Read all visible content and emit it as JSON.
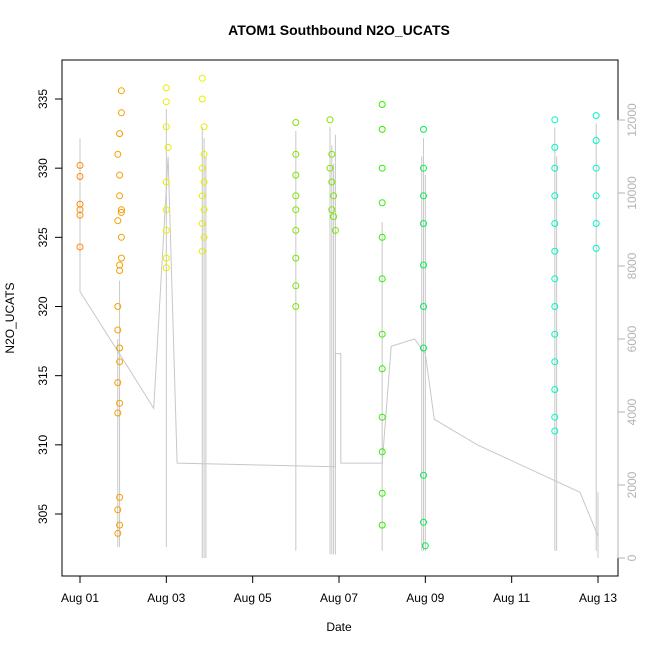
{
  "colors": {
    "background": "#ffffff",
    "axis": "#000000",
    "right_axis": "#b3b3b3",
    "altitude_line": "#c8c8c8",
    "point_palette": [
      "#ff8c00",
      "#f5a000",
      "#e8ee00",
      "#bff500",
      "#7de600",
      "#33ee00",
      "#00ee55",
      "#00f0a0",
      "#00f5c5"
    ]
  },
  "chart_data": {
    "type": "scatter",
    "title": "ATOM1 Southbound N2O_UCATS",
    "xlabel": "Date",
    "ylabel": "N2O_UCATS",
    "y2label": "",
    "xlim": [
      "2016-07-31",
      "2016-08-13"
    ],
    "ylim": [
      301.5,
      337.5
    ],
    "y2lim": [
      -200,
      12800
    ],
    "x_ticks": [
      {
        "label": "Aug 01",
        "date": "2016-08-01"
      },
      {
        "label": "Aug 03",
        "date": "2016-08-03"
      },
      {
        "label": "Aug 05",
        "date": "2016-08-05"
      },
      {
        "label": "Aug 07",
        "date": "2016-08-07"
      },
      {
        "label": "Aug 09",
        "date": "2016-08-09"
      },
      {
        "label": "Aug 11",
        "date": "2016-08-11"
      },
      {
        "label": "Aug 13",
        "date": "2016-08-13"
      }
    ],
    "y_ticks": [
      "305",
      "310",
      "315",
      "320",
      "325",
      "330",
      "335"
    ],
    "y2_ticks": [
      "0",
      "2000",
      "4000",
      "6000",
      "8000",
      "10000",
      "12000"
    ],
    "grid": false,
    "legend": "none",
    "series": [
      {
        "kind": "points",
        "axis": "left",
        "points": [
          [
            "2016-08-01 00:00",
            330.2
          ],
          [
            "2016-08-01 00:00",
            329.4
          ],
          [
            "2016-08-01 00:00",
            327.4
          ],
          [
            "2016-08-01 00:00",
            327.0
          ],
          [
            "2016-08-01 00:00",
            326.6
          ],
          [
            "2016-08-01 00:00",
            324.3
          ],
          [
            "2016-08-01 21:00",
            331.0
          ],
          [
            "2016-08-01 22:00",
            329.5
          ],
          [
            "2016-08-01 23:00",
            327.0
          ],
          [
            "2016-08-01 23:00",
            325.0
          ],
          [
            "2016-08-01 22:00",
            323.0
          ],
          [
            "2016-08-01 21:00",
            320.0
          ],
          [
            "2016-08-01 22:00",
            316.0
          ],
          [
            "2016-08-01 21:00",
            314.5
          ],
          [
            "2016-08-01 22:00",
            313.0
          ],
          [
            "2016-08-01 21:00",
            312.3
          ],
          [
            "2016-08-01 22:00",
            306.2
          ],
          [
            "2016-08-01 21:00",
            305.3
          ],
          [
            "2016-08-01 22:00",
            304.2
          ],
          [
            "2016-08-01 21:00",
            303.6
          ],
          [
            "2016-08-01 23:00",
            335.6
          ],
          [
            "2016-08-01 23:00",
            334.0
          ],
          [
            "2016-08-01 22:00",
            332.5
          ],
          [
            "2016-08-01 22:00",
            328.0
          ],
          [
            "2016-08-01 23:00",
            326.8
          ],
          [
            "2016-08-01 21:00",
            326.2
          ],
          [
            "2016-08-01 23:00",
            323.5
          ],
          [
            "2016-08-01 22:00",
            322.6
          ],
          [
            "2016-08-01 21:00",
            318.3
          ],
          [
            "2016-08-01 22:00",
            317.0
          ],
          [
            "2016-08-03 00:00",
            335.8
          ],
          [
            "2016-08-03 00:00",
            334.8
          ],
          [
            "2016-08-03 00:00",
            333.0
          ],
          [
            "2016-08-03 01:00",
            331.5
          ],
          [
            "2016-08-03 00:00",
            329.0
          ],
          [
            "2016-08-03 00:00",
            327.0
          ],
          [
            "2016-08-03 00:00",
            325.5
          ],
          [
            "2016-08-03 00:00",
            323.5
          ],
          [
            "2016-08-03 00:00",
            322.8
          ],
          [
            "2016-08-03 20:00",
            336.5
          ],
          [
            "2016-08-03 20:00",
            335.0
          ],
          [
            "2016-08-03 21:00",
            333.0
          ],
          [
            "2016-08-03 21:00",
            331.0
          ],
          [
            "2016-08-03 20:00",
            330.0
          ],
          [
            "2016-08-03 21:00",
            329.0
          ],
          [
            "2016-08-03 20:00",
            328.0
          ],
          [
            "2016-08-03 21:00",
            327.0
          ],
          [
            "2016-08-03 20:00",
            326.0
          ],
          [
            "2016-08-03 21:00",
            325.0
          ],
          [
            "2016-08-03 20:00",
            324.0
          ],
          [
            "2016-08-06 00:00",
            333.3
          ],
          [
            "2016-08-06 00:00",
            331.0
          ],
          [
            "2016-08-06 00:00",
            329.5
          ],
          [
            "2016-08-06 00:00",
            328.0
          ],
          [
            "2016-08-06 00:00",
            327.0
          ],
          [
            "2016-08-06 00:00",
            325.5
          ],
          [
            "2016-08-06 00:00",
            323.5
          ],
          [
            "2016-08-06 00:00",
            321.5
          ],
          [
            "2016-08-06 00:00",
            320.0
          ],
          [
            "2016-08-06 19:00",
            333.5
          ],
          [
            "2016-08-06 20:00",
            331.0
          ],
          [
            "2016-08-06 19:00",
            330.0
          ],
          [
            "2016-08-06 20:00",
            329.0
          ],
          [
            "2016-08-06 21:00",
            328.0
          ],
          [
            "2016-08-06 20:00",
            327.0
          ],
          [
            "2016-08-06 21:00",
            326.5
          ],
          [
            "2016-08-06 22:00",
            325.5
          ],
          [
            "2016-08-08 00:00",
            334.6
          ],
          [
            "2016-08-08 00:00",
            332.8
          ],
          [
            "2016-08-08 00:00",
            330.0
          ],
          [
            "2016-08-08 00:00",
            327.5
          ],
          [
            "2016-08-08 00:00",
            325.0
          ],
          [
            "2016-08-08 00:00",
            322.0
          ],
          [
            "2016-08-08 00:00",
            318.0
          ],
          [
            "2016-08-08 00:00",
            315.5
          ],
          [
            "2016-08-08 00:00",
            312.0
          ],
          [
            "2016-08-08 00:00",
            309.5
          ],
          [
            "2016-08-08 00:00",
            306.5
          ],
          [
            "2016-08-08 00:00",
            304.2
          ],
          [
            "2016-08-08 23:00",
            332.8
          ],
          [
            "2016-08-08 23:00",
            330.0
          ],
          [
            "2016-08-08 23:00",
            328.0
          ],
          [
            "2016-08-08 23:00",
            326.0
          ],
          [
            "2016-08-08 23:00",
            323.0
          ],
          [
            "2016-08-08 23:00",
            320.0
          ],
          [
            "2016-08-08 23:00",
            317.0
          ],
          [
            "2016-08-08 23:00",
            307.8
          ],
          [
            "2016-08-08 23:00",
            304.4
          ],
          [
            "2016-08-09 00:00",
            302.7
          ],
          [
            "2016-08-12 00:00",
            333.5
          ],
          [
            "2016-08-12 00:00",
            331.5
          ],
          [
            "2016-08-12 00:00",
            330.0
          ],
          [
            "2016-08-12 00:00",
            328.0
          ],
          [
            "2016-08-12 00:00",
            326.0
          ],
          [
            "2016-08-12 00:00",
            324.0
          ],
          [
            "2016-08-12 00:00",
            322.0
          ],
          [
            "2016-08-12 00:00",
            320.0
          ],
          [
            "2016-08-12 00:00",
            318.0
          ],
          [
            "2016-08-12 00:00",
            316.0
          ],
          [
            "2016-08-12 00:00",
            314.0
          ],
          [
            "2016-08-12 00:00",
            312.0
          ],
          [
            "2016-08-12 00:00",
            311.0
          ],
          [
            "2016-08-12 23:00",
            333.8
          ],
          [
            "2016-08-12 23:00",
            332.0
          ],
          [
            "2016-08-12 23:00",
            330.0
          ],
          [
            "2016-08-12 23:00",
            328.0
          ],
          [
            "2016-08-12 23:00",
            326.0
          ],
          [
            "2016-08-12 23:00",
            324.2
          ]
        ]
      },
      {
        "kind": "line",
        "axis": "right",
        "points": [
          [
            "2016-08-01 00:00",
            11500
          ],
          [
            "2016-08-01 00:00",
            7300
          ],
          [
            "2016-08-02 03:00",
            5200
          ],
          [
            "2016-08-02 17:00",
            4100
          ],
          [
            "2016-08-03 01:00",
            11000
          ],
          [
            "2016-08-03 06:00",
            2600
          ],
          [
            "2016-08-06 22:00",
            2500
          ],
          [
            "2016-08-06 22:00",
            5600
          ],
          [
            "2016-08-07 01:00",
            5600
          ],
          [
            "2016-08-07 01:00",
            2600
          ],
          [
            "2016-08-08 00:00",
            2600
          ],
          [
            "2016-08-08 05:00",
            5800
          ],
          [
            "2016-08-08 18:00",
            6000
          ],
          [
            "2016-08-09 00:00",
            5600
          ],
          [
            "2016-08-09 05:00",
            3800
          ],
          [
            "2016-08-10 05:00",
            3100
          ],
          [
            "2016-08-12 14:00",
            1800
          ],
          [
            "2016-08-13 00:00",
            600
          ],
          [
            "2016-08-13 00:00",
            1800
          ],
          [
            "2016-08-13 00:00",
            0
          ]
        ]
      }
    ]
  }
}
